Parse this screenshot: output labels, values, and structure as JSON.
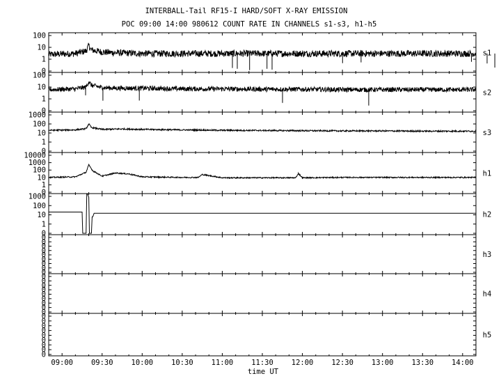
{
  "chart_data": {
    "type": "line",
    "title": "INTERBALL-Tail RF15-I HARD/SOFT X-RAY EMISSION",
    "subtitle": "POC 09:00 14:00 980612  COUNT RATE IN CHANNELS s1-s3, h1-h5",
    "xlabel": "time UT",
    "x_ticks": [
      "09:00",
      "09:30",
      "10:00",
      "10:30",
      "11:00",
      "11:30",
      "12:00",
      "12:30",
      "13:00",
      "13:30",
      "14:00"
    ],
    "x_range": [
      "08:50",
      "14:10"
    ],
    "y_scale": "log",
    "grid": false,
    "panels": [
      {
        "name": "s1",
        "y_tick_labels": [
          "100",
          "10",
          "1",
          "0"
        ],
        "series": {
          "x": [
            "08:50",
            "09:10",
            "09:18",
            "09:20",
            "09:22",
            "09:30",
            "09:40",
            "10:00",
            "10:30",
            "11:00",
            "11:30",
            "12:00",
            "12:30",
            "13:00",
            "13:30",
            "14:00",
            "14:10"
          ],
          "y": [
            2.5,
            3,
            5,
            14,
            6,
            4,
            3.5,
            3,
            3,
            3,
            3,
            3,
            3,
            3,
            3,
            3,
            3
          ]
        }
      },
      {
        "name": "s2",
        "y_tick_labels": [
          "100",
          "10",
          "1",
          "0"
        ],
        "series": {
          "x": [
            "08:50",
            "09:10",
            "09:18",
            "09:20",
            "09:22",
            "09:30",
            "09:40",
            "10:00",
            "10:30",
            "11:00",
            "11:30",
            "12:00",
            "12:30",
            "13:00",
            "13:30",
            "14:00",
            "14:10"
          ],
          "y": [
            6,
            7,
            10,
            30,
            14,
            9,
            8,
            8,
            7,
            7,
            6.5,
            6.5,
            6,
            6,
            6,
            6,
            6
          ]
        }
      },
      {
        "name": "s3",
        "y_tick_labels": [
          "1000",
          "100",
          "10",
          "1",
          "0"
        ],
        "series": {
          "x": [
            "08:50",
            "09:10",
            "09:18",
            "09:20",
            "09:22",
            "09:30",
            "09:45",
            "10:00",
            "10:30",
            "11:00",
            "11:30",
            "12:00",
            "12:30",
            "13:00",
            "13:30",
            "14:00",
            "14:10"
          ],
          "y": [
            20,
            22,
            30,
            100,
            40,
            25,
            28,
            25,
            22,
            20,
            19,
            18,
            17,
            17,
            16,
            16,
            16
          ]
        }
      },
      {
        "name": "h1",
        "y_tick_labels": [
          "10000",
          "1000",
          "100",
          "10",
          "1",
          "0"
        ],
        "series": {
          "x": [
            "08:50",
            "09:10",
            "09:18",
            "09:20",
            "09:23",
            "09:30",
            "09:40",
            "09:50",
            "10:00",
            "10:30",
            "10:42",
            "10:45",
            "11:00",
            "11:30",
            "11:55",
            "11:57",
            "12:00",
            "12:30",
            "13:00",
            "13:30",
            "14:00",
            "14:10"
          ],
          "y": [
            10,
            12,
            50,
            500,
            80,
            15,
            40,
            30,
            12,
            10,
            10,
            25,
            9,
            9,
            9,
            35,
            9,
            10,
            10,
            10,
            10,
            10
          ]
        }
      },
      {
        "name": "h2",
        "y_tick_labels": [
          "1000",
          "100",
          "10",
          "1",
          "0"
        ],
        "series": {
          "x": [
            "08:50",
            "09:15",
            "09:16",
            "09:17",
            "09:18",
            "09:19",
            "09:20",
            "09:21",
            "09:22",
            "09:23",
            "09:24",
            "14:10"
          ],
          "y": [
            20,
            20,
            0,
            0,
            0,
            2000,
            800,
            0,
            0,
            6,
            15,
            15
          ]
        }
      },
      {
        "name": "h3",
        "y_tick_labels": [
          "0",
          "0",
          "0",
          "0",
          "0",
          "0",
          "0",
          "0",
          "0"
        ],
        "series": {
          "x": [],
          "y": []
        }
      },
      {
        "name": "h4",
        "y_tick_labels": [
          "0",
          "0",
          "0",
          "0",
          "0",
          "0",
          "0",
          "0",
          "0"
        ],
        "series": {
          "x": [],
          "y": []
        }
      },
      {
        "name": "h5",
        "y_tick_labels": [
          "0",
          "0",
          "0",
          "0",
          "0",
          "0",
          "0",
          "0",
          "0"
        ],
        "series": {
          "x": [],
          "y": []
        }
      }
    ]
  },
  "colors": {
    "foreground": "#000000",
    "background": "#ffffff"
  }
}
